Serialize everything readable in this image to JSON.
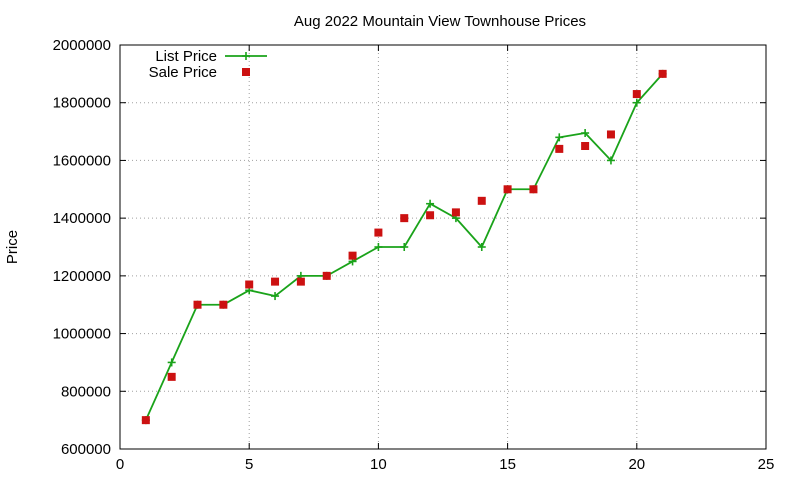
{
  "chart_data": {
    "type": "line",
    "title": "Aug 2022 Mountain View Townhouse Prices",
    "xlabel": "",
    "ylabel": "Price",
    "xlim": [
      0,
      25
    ],
    "ylim": [
      600000,
      2000000
    ],
    "xticks": [
      0,
      5,
      10,
      15,
      20,
      25
    ],
    "yticks": [
      600000,
      800000,
      1000000,
      1200000,
      1400000,
      1600000,
      1800000,
      2000000
    ],
    "grid": true,
    "legend_position": "top-left",
    "series": [
      {
        "name": "List Price",
        "style": "lines+points",
        "color": "#1aa31a",
        "x": [
          1,
          2,
          3,
          4,
          5,
          6,
          7,
          8,
          9,
          10,
          11,
          12,
          13,
          14,
          15,
          16,
          17,
          18,
          19,
          20,
          21
        ],
        "y": [
          700000,
          900000,
          1100000,
          1100000,
          1150000,
          1130000,
          1200000,
          1200000,
          1250000,
          1300000,
          1300000,
          1450000,
          1400000,
          1300000,
          1500000,
          1500000,
          1680000,
          1695000,
          1600000,
          1800000,
          1900000
        ]
      },
      {
        "name": "Sale Price",
        "style": "points",
        "color": "#cc1111",
        "x": [
          1,
          2,
          3,
          4,
          5,
          6,
          7,
          8,
          9,
          10,
          11,
          12,
          13,
          14,
          15,
          16,
          17,
          18,
          19,
          20,
          21
        ],
        "y": [
          700000,
          850000,
          1100000,
          1100000,
          1170000,
          1180000,
          1180000,
          1200000,
          1270000,
          1350000,
          1400000,
          1410000,
          1420000,
          1460000,
          1500000,
          1500000,
          1640000,
          1650000,
          1690000,
          1830000,
          1900000
        ]
      }
    ]
  }
}
